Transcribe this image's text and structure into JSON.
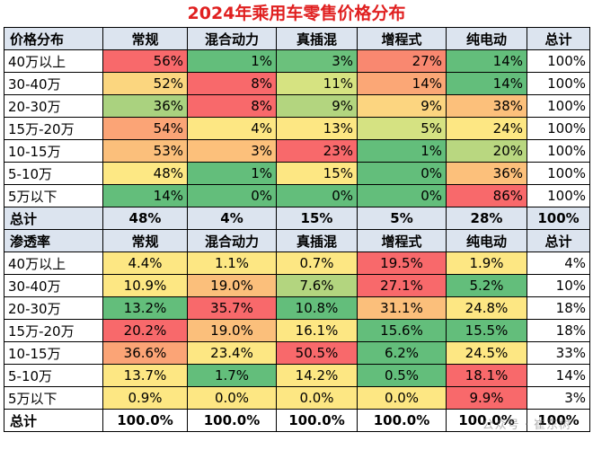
{
  "title": "2024年乘用车零售价格分布",
  "watermark": "公众号 · 崔东树",
  "section1": {
    "header": [
      "价格分布",
      "常规",
      "混合动力",
      "真插混",
      "增程式",
      "纯电动",
      "总计"
    ],
    "rows": [
      {
        "label": "40万以上",
        "cells": [
          {
            "v": "56%",
            "bg": "#f8696b"
          },
          {
            "v": "1%",
            "bg": "#63be7b"
          },
          {
            "v": "3%",
            "bg": "#6bc17c"
          },
          {
            "v": "27%",
            "bg": "#f98870"
          },
          {
            "v": "14%",
            "bg": "#63be7b"
          },
          {
            "v": "100%",
            "bg": "#ffffff"
          }
        ]
      },
      {
        "label": "30-40万",
        "cells": [
          {
            "v": "52%",
            "bg": "#fbd67f"
          },
          {
            "v": "8%",
            "bg": "#f8696b"
          },
          {
            "v": "11%",
            "bg": "#d6e381"
          },
          {
            "v": "14%",
            "bg": "#fba776"
          },
          {
            "v": "14%",
            "bg": "#63be7b"
          },
          {
            "v": "100%",
            "bg": "#ffffff"
          }
        ]
      },
      {
        "label": "20-30万",
        "cells": [
          {
            "v": "36%",
            "bg": "#aad27f"
          },
          {
            "v": "8%",
            "bg": "#f8696b"
          },
          {
            "v": "9%",
            "bg": "#b3d57f"
          },
          {
            "v": "9%",
            "bg": "#fcd580"
          },
          {
            "v": "38%",
            "bg": "#fcc07b"
          },
          {
            "v": "100%",
            "bg": "#ffffff"
          }
        ]
      },
      {
        "label": "15万-20万",
        "cells": [
          {
            "v": "54%",
            "bg": "#fba476"
          },
          {
            "v": "4%",
            "bg": "#fde783"
          },
          {
            "v": "13%",
            "bg": "#fde783"
          },
          {
            "v": "5%",
            "bg": "#d5e282"
          },
          {
            "v": "24%",
            "bg": "#fde783"
          },
          {
            "v": "100%",
            "bg": "#ffffff"
          }
        ]
      },
      {
        "label": "10-15万",
        "cells": [
          {
            "v": "53%",
            "bg": "#fbbf7b"
          },
          {
            "v": "3%",
            "bg": "#fcc07b"
          },
          {
            "v": "23%",
            "bg": "#f8696b"
          },
          {
            "v": "1%",
            "bg": "#63be7b"
          },
          {
            "v": "20%",
            "bg": "#b9d780"
          },
          {
            "v": "100%",
            "bg": "#ffffff"
          }
        ]
      },
      {
        "label": "5-10万",
        "cells": [
          {
            "v": "48%",
            "bg": "#fde884"
          },
          {
            "v": "1%",
            "bg": "#63be7b"
          },
          {
            "v": "15%",
            "bg": "#fde783"
          },
          {
            "v": "0%",
            "bg": "#63be7b"
          },
          {
            "v": "36%",
            "bg": "#fcc07b"
          },
          {
            "v": "100%",
            "bg": "#ffffff"
          }
        ]
      },
      {
        "label": "5万以下",
        "cells": [
          {
            "v": "14%",
            "bg": "#63be7b"
          },
          {
            "v": "0%",
            "bg": "#63be7b"
          },
          {
            "v": "0%",
            "bg": "#63be7b"
          },
          {
            "v": "0%",
            "bg": "#63be7b"
          },
          {
            "v": "86%",
            "bg": "#f8696b"
          },
          {
            "v": "100%",
            "bg": "#ffffff"
          }
        ]
      }
    ],
    "total": {
      "label": "总计",
      "values": [
        "48%",
        "4%",
        "15%",
        "5%",
        "28%",
        "100%"
      ]
    }
  },
  "section2": {
    "header": [
      "渗透率",
      "常规",
      "混合动力",
      "真插混",
      "增程式",
      "纯电动",
      "总计"
    ],
    "rows": [
      {
        "label": "40万以上",
        "cells": [
          {
            "v": "4.4%",
            "bg": "#fde783"
          },
          {
            "v": "1.1%",
            "bg": "#fde783"
          },
          {
            "v": "0.7%",
            "bg": "#fde783"
          },
          {
            "v": "19.5%",
            "bg": "#f8696b"
          },
          {
            "v": "1.9%",
            "bg": "#fde783"
          },
          {
            "v": "4%",
            "bg": "#ffffff"
          }
        ]
      },
      {
        "label": "30-40万",
        "cells": [
          {
            "v": "10.9%",
            "bg": "#fde783"
          },
          {
            "v": "19.0%",
            "bg": "#fbbf7b"
          },
          {
            "v": "7.6%",
            "bg": "#b3d57f"
          },
          {
            "v": "27.1%",
            "bg": "#f8696b"
          },
          {
            "v": "5.2%",
            "bg": "#63be7b"
          },
          {
            "v": "10%",
            "bg": "#ffffff"
          }
        ]
      },
      {
        "label": "20-30万",
        "cells": [
          {
            "v": "13.2%",
            "bg": "#63be7b"
          },
          {
            "v": "35.7%",
            "bg": "#f8696b"
          },
          {
            "v": "10.8%",
            "bg": "#63be7b"
          },
          {
            "v": "31.1%",
            "bg": "#fbbf7b"
          },
          {
            "v": "24.8%",
            "bg": "#fde783"
          },
          {
            "v": "18%",
            "bg": "#ffffff"
          }
        ]
      },
      {
        "label": "15万-20万",
        "cells": [
          {
            "v": "20.2%",
            "bg": "#f8696b"
          },
          {
            "v": "19.0%",
            "bg": "#fbbf7b"
          },
          {
            "v": "16.1%",
            "bg": "#fde783"
          },
          {
            "v": "15.6%",
            "bg": "#63be7b"
          },
          {
            "v": "15.5%",
            "bg": "#63be7b"
          },
          {
            "v": "18%",
            "bg": "#ffffff"
          }
        ]
      },
      {
        "label": "10-15万",
        "cells": [
          {
            "v": "36.6%",
            "bg": "#fba476"
          },
          {
            "v": "23.4%",
            "bg": "#fde783"
          },
          {
            "v": "50.5%",
            "bg": "#f8696b"
          },
          {
            "v": "6.2%",
            "bg": "#63be7b"
          },
          {
            "v": "24.5%",
            "bg": "#fde783"
          },
          {
            "v": "33%",
            "bg": "#ffffff"
          }
        ]
      },
      {
        "label": "5-10万",
        "cells": [
          {
            "v": "13.7%",
            "bg": "#fde783"
          },
          {
            "v": "1.7%",
            "bg": "#63be7b"
          },
          {
            "v": "14.2%",
            "bg": "#fde783"
          },
          {
            "v": "0.5%",
            "bg": "#63be7b"
          },
          {
            "v": "18.1%",
            "bg": "#f8696b"
          },
          {
            "v": "14%",
            "bg": "#ffffff"
          }
        ]
      },
      {
        "label": "5万以下",
        "cells": [
          {
            "v": "0.9%",
            "bg": "#fde783"
          },
          {
            "v": "0.0%",
            "bg": "#fde783"
          },
          {
            "v": "0.0%",
            "bg": "#fde783"
          },
          {
            "v": "0.0%",
            "bg": "#fde783"
          },
          {
            "v": "9.9%",
            "bg": "#f8696b"
          },
          {
            "v": "3%",
            "bg": "#ffffff"
          }
        ]
      }
    ],
    "total": {
      "label": "总计",
      "values": [
        "100.0%",
        "100.0%",
        "100.0%",
        "100.0%",
        "100.0%",
        "100%"
      ]
    }
  }
}
